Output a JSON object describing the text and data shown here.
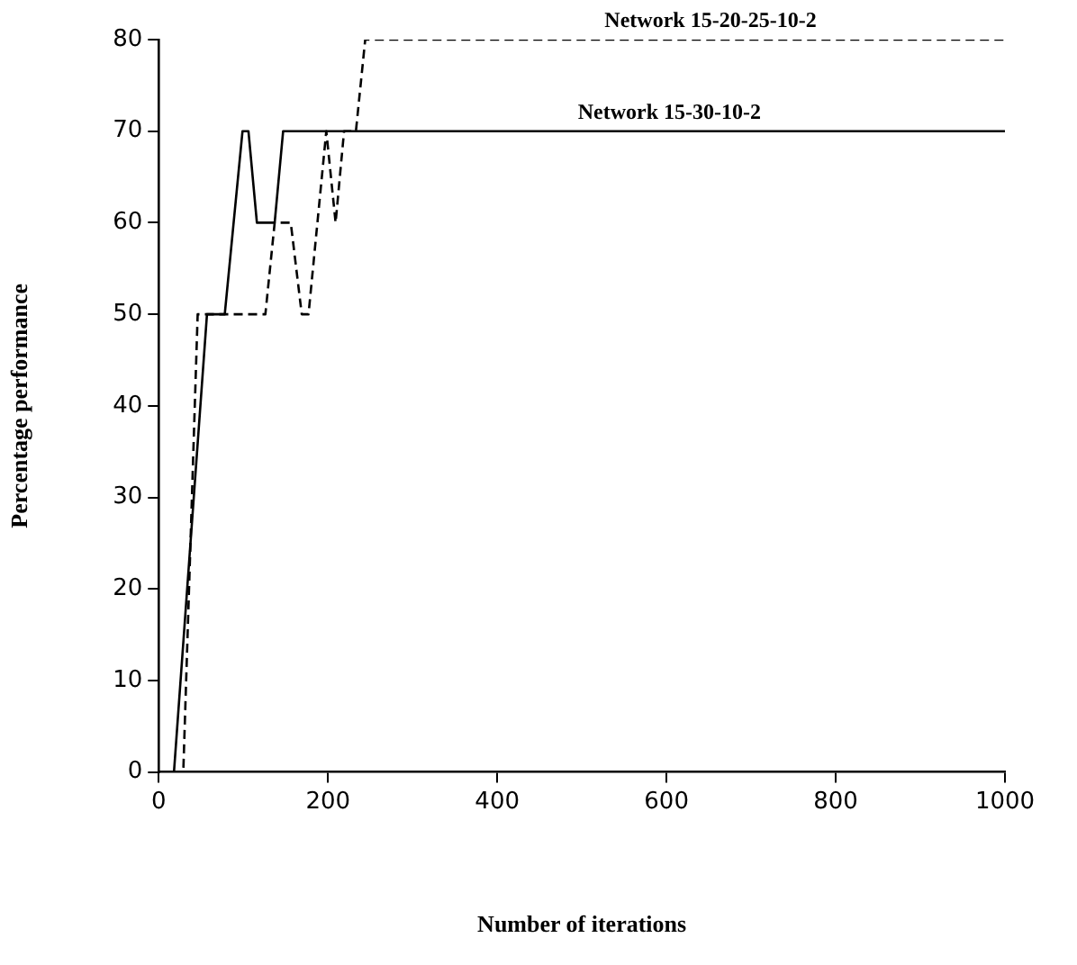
{
  "chart_data": {
    "type": "line",
    "xlabel": "Number of iterations",
    "ylabel": "Percentage performance",
    "xlim": [
      0,
      1000
    ],
    "xticks": [
      0,
      200,
      400,
      600,
      800,
      1000
    ],
    "ylim": [
      0,
      80
    ],
    "yticks": [
      0,
      10,
      20,
      30,
      40,
      50,
      60,
      70,
      80
    ],
    "grid": false,
    "legend": false,
    "marker": "none",
    "series": [
      {
        "name": "Network 15-20-25-10-2",
        "color": "#000000",
        "line_style": "dashed",
        "x": [
          0,
          29,
          46,
          126,
          137,
          156,
          169,
          177,
          198,
          209,
          219,
          233,
          244,
          1000
        ],
        "values": [
          0,
          0,
          50,
          50,
          60,
          60,
          50,
          50,
          70,
          60,
          70,
          70,
          80,
          80
        ]
      },
      {
        "name": "Network 15-30-10-2",
        "color": "#000000",
        "line_style": "solid",
        "x": [
          0,
          18,
          57,
          78,
          99,
          106,
          116,
          137,
          147,
          1000
        ],
        "values": [
          0,
          0,
          50,
          50,
          70,
          70,
          60,
          60,
          70,
          70
        ]
      }
    ]
  }
}
